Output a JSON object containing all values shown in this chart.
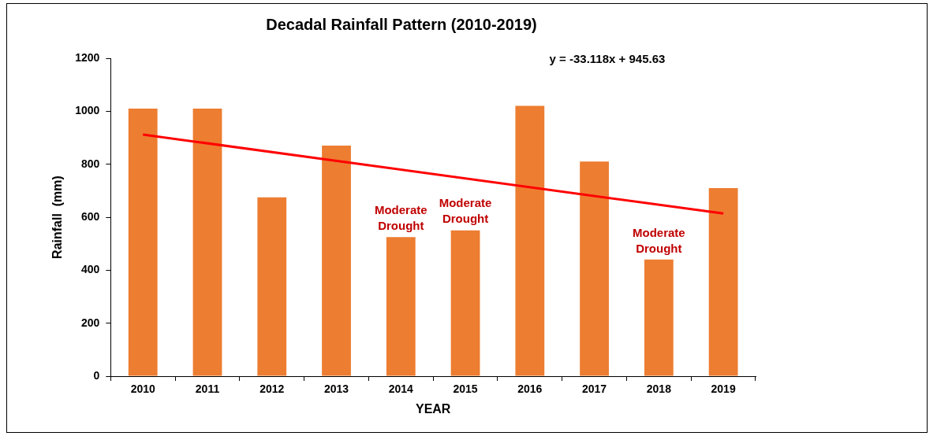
{
  "chart_data": {
    "type": "bar",
    "title": "Decadal Rainfall Pattern (2010-2019)",
    "xlabel": "YEAR",
    "ylabel": "Rainfall  (mm)",
    "categories": [
      "2010",
      "2011",
      "2012",
      "2013",
      "2014",
      "2015",
      "2016",
      "2017",
      "2018",
      "2019"
    ],
    "series": [
      {
        "color": "#ed7d31",
        "values": [
          1010,
          1010,
          675,
          870,
          525,
          550,
          1020,
          810,
          440,
          710
        ]
      },
      {
        "type": "line",
        "color": "#ff0000",
        "values": [
          912,
          null,
          null,
          null,
          null,
          null,
          null,
          null,
          null,
          614
        ]
      }
    ],
    "ylim": [
      0,
      1200
    ],
    "yticks": [
      0,
      200,
      400,
      600,
      800,
      1000,
      1200
    ],
    "grid": false,
    "legend": false,
    "annotations": [
      "y = -33.118x + 945.63",
      {
        "text": "Moderate Drought",
        "x": "2014",
        "y": 525
      },
      {
        "text": "Moderate Drought",
        "x": "2015",
        "y": 550
      },
      {
        "text": "Moderate Drought",
        "x": "2018",
        "y": 440
      }
    ]
  }
}
